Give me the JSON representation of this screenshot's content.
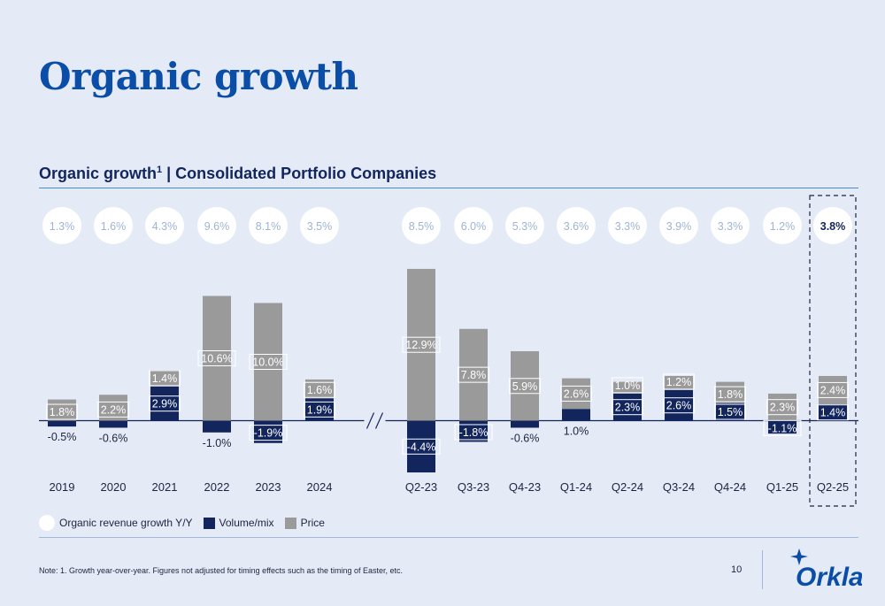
{
  "title": "Organic growth",
  "subtitle": {
    "text": "Organic growth",
    "sup": "1",
    "rest": " | Consolidated Portfolio Companies"
  },
  "legend": {
    "organic": "Organic revenue growth Y/Y",
    "volume": "Volume/mix",
    "price": "Price"
  },
  "note": "Note: 1. Growth year-over-year. Figures not adjusted for timing effects such as the timing of Easter, etc.",
  "page_number": "10",
  "logo_text": "Orkla",
  "colors": {
    "background": "#e5ebf6",
    "volume_mix": "#12255c",
    "price": "#9a9a9a",
    "title": "#0a4ea8",
    "bubble": "#ffffff",
    "bubble_text": "#9fb3d3"
  },
  "chart_data": {
    "type": "bar",
    "stacked": true,
    "unit": "%",
    "categories": [
      "2019",
      "2020",
      "2021",
      "2022",
      "2023",
      "2024",
      "Q2-23",
      "Q3-23",
      "Q4-23",
      "Q1-24",
      "Q2-24",
      "Q3-24",
      "Q4-24",
      "Q1-25",
      "Q2-25"
    ],
    "axis_break_after": "2024",
    "highlight_category": "Q2-25",
    "series": [
      {
        "name": "Volume/mix",
        "values": [
          -0.5,
          -0.6,
          2.9,
          -1.0,
          -1.9,
          1.9,
          -4.4,
          -1.8,
          -0.6,
          1.0,
          2.3,
          2.6,
          1.5,
          -1.1,
          1.4
        ]
      },
      {
        "name": "Price",
        "values": [
          1.8,
          2.2,
          1.4,
          10.6,
          10.0,
          1.6,
          12.9,
          7.8,
          5.9,
          2.6,
          1.0,
          1.2,
          1.8,
          2.3,
          2.4
        ]
      }
    ],
    "organic_revenue_growth": {
      "name": "Organic revenue growth Y/Y",
      "labels": [
        "1.3%",
        "1.6%",
        "4.3%",
        "9.6%",
        "8.1%",
        "3.5%",
        "8.5%",
        "6.0%",
        "5.3%",
        "3.6%",
        "3.3%",
        "3.9%",
        "3.3%",
        "1.2%",
        "3.8%"
      ]
    },
    "volume_labels": [
      "-0.5%",
      "-0.6%",
      "2.9%",
      "-1.0%",
      "-1.9%",
      "1.9%",
      "-4.4%",
      "-1.8%",
      "-0.6%",
      "1.0%",
      "2.3%",
      "2.6%",
      "1.5%",
      "-1.1%",
      "1.4%"
    ],
    "price_labels": [
      "1.8%",
      "2.2%",
      "1.4%",
      "10.6%",
      "10.0%",
      "1.6%",
      "12.9%",
      "7.8%",
      "5.9%",
      "2.6%",
      "1.0%",
      "1.2%",
      "1.8%",
      "2.3%",
      "2.4%"
    ]
  }
}
